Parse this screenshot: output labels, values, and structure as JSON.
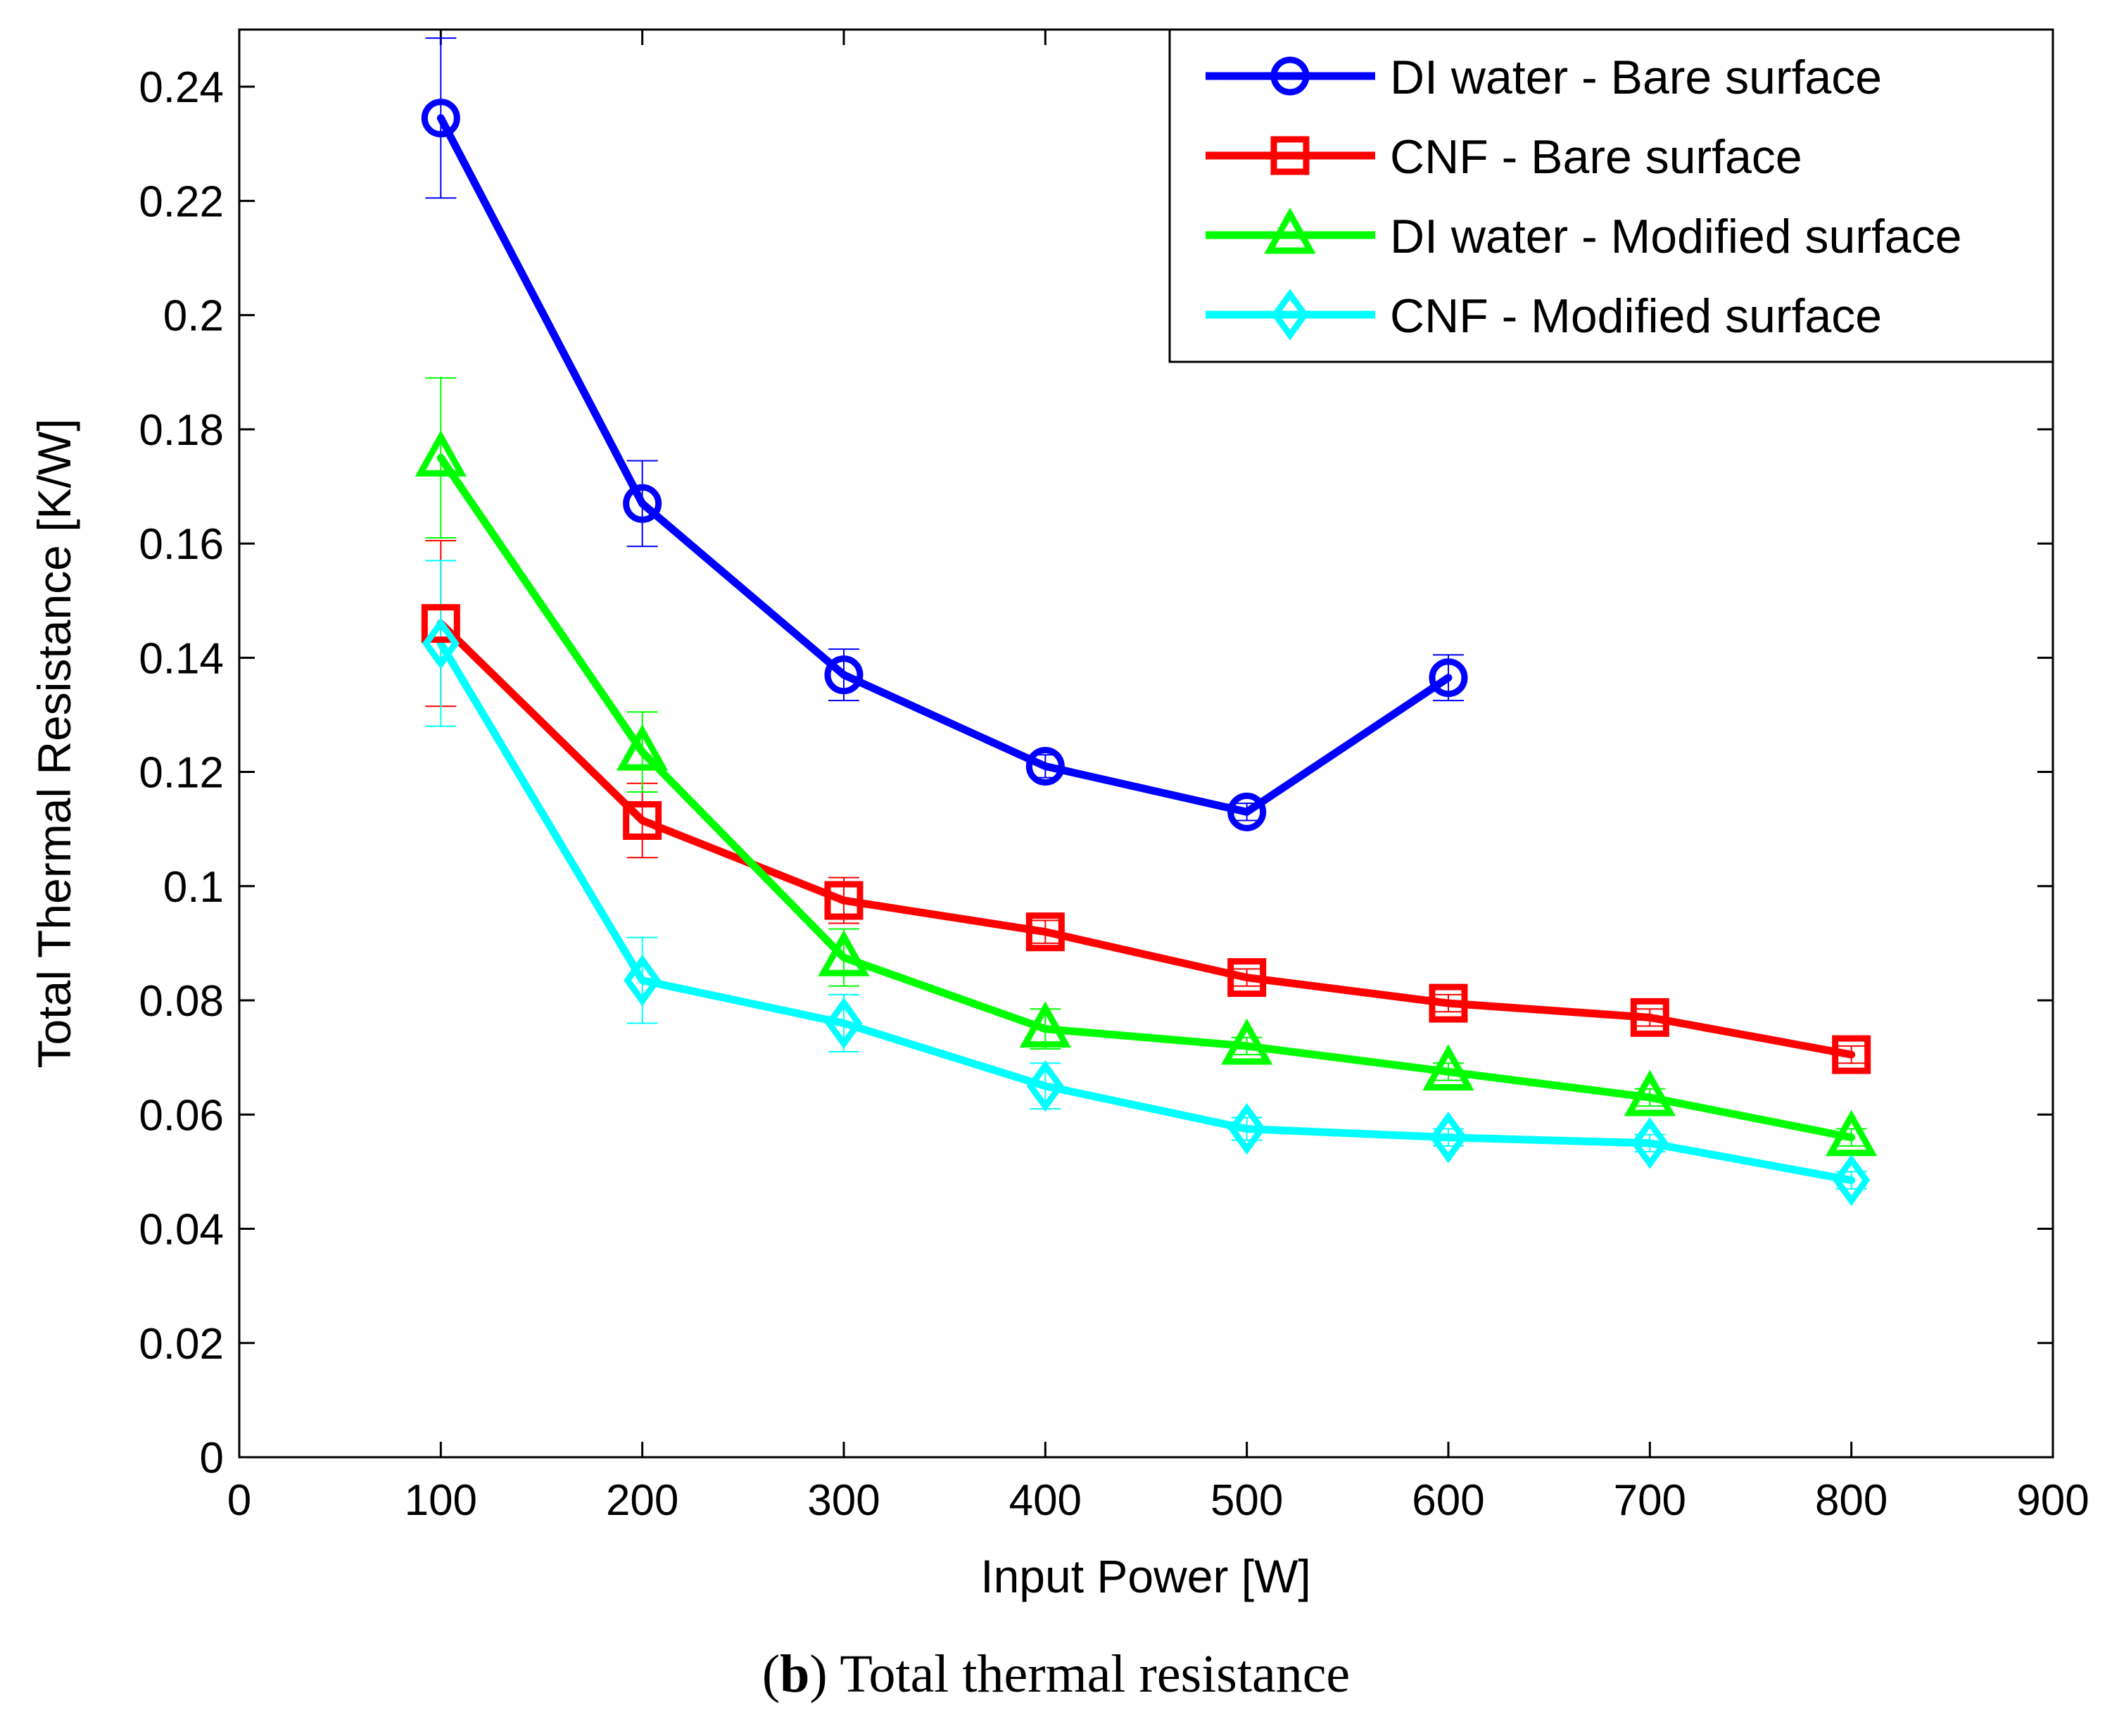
{
  "chart_data": {
    "type": "line",
    "xlabel": "Input Power [W]",
    "ylabel": "Total Thermal Resistance [K/W]",
    "xlim": [
      0,
      900
    ],
    "ylim": [
      0,
      0.25
    ],
    "xticks": [
      0,
      100,
      200,
      300,
      400,
      500,
      600,
      700,
      800,
      900
    ],
    "xtick_labels": [
      "0",
      "100",
      "200",
      "300",
      "400",
      "500",
      "600",
      "700",
      "800",
      "900"
    ],
    "yticks": [
      0,
      0.02,
      0.04,
      0.06,
      0.08,
      0.1,
      0.12,
      0.14,
      0.16,
      0.18,
      0.2,
      0.22,
      0.24
    ],
    "ytick_labels": [
      "0",
      "0.02",
      "0.04",
      "0.06",
      "0.08",
      "0.1",
      "0.12",
      "0.14",
      "0.16",
      "0.18",
      "0.2",
      "0.22",
      "0.24"
    ],
    "grid": false,
    "legend_position": "top-right",
    "series": [
      {
        "name": "DI water - Bare surface",
        "color": "#0000ff",
        "marker": "circle",
        "x": [
          100,
          200,
          300,
          400,
          500,
          600
        ],
        "y": [
          0.2345,
          0.167,
          0.137,
          0.121,
          0.113,
          0.1365
        ],
        "err": [
          0.014,
          0.0075,
          0.0045,
          0.002,
          0.0015,
          0.004
        ]
      },
      {
        "name": "CNF - Bare surface",
        "color": "#ff0000",
        "marker": "square",
        "x": [
          100,
          200,
          300,
          400,
          500,
          600,
          700,
          800
        ],
        "y": [
          0.146,
          0.1115,
          0.0975,
          0.092,
          0.084,
          0.0795,
          0.077,
          0.0705
        ],
        "err": [
          0.0145,
          0.0065,
          0.004,
          0.002,
          0.0015,
          0.0015,
          0.0015,
          0.0015
        ]
      },
      {
        "name": "DI water - Modified surface",
        "color": "#00ff00",
        "marker": "triangle",
        "x": [
          100,
          200,
          300,
          400,
          500,
          600,
          700,
          800
        ],
        "y": [
          0.175,
          0.1235,
          0.0875,
          0.075,
          0.072,
          0.0675,
          0.063,
          0.056
        ],
        "err": [
          0.014,
          0.007,
          0.005,
          0.0035,
          0.0015,
          0.0015,
          0.0015,
          0.0015
        ]
      },
      {
        "name": "CNF - Modified surface",
        "color": "#00ffff",
        "marker": "diamond",
        "x": [
          100,
          200,
          300,
          400,
          500,
          600,
          700,
          800
        ],
        "y": [
          0.1425,
          0.0835,
          0.076,
          0.065,
          0.0575,
          0.056,
          0.055,
          0.0485
        ],
        "err": [
          0.0145,
          0.0075,
          0.005,
          0.004,
          0.002,
          0.0015,
          0.0015,
          0.0015
        ]
      }
    ]
  },
  "caption": {
    "open": "(",
    "letter": "b",
    "text": ") Total thermal resistance"
  }
}
